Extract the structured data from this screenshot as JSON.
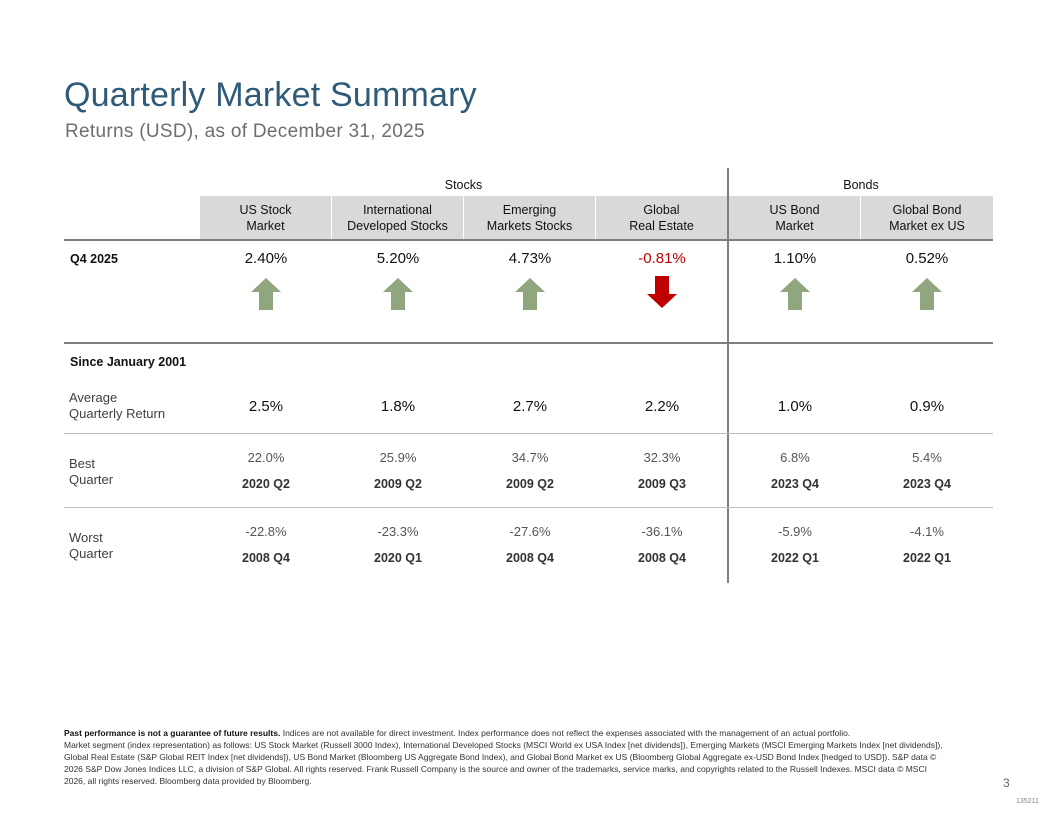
{
  "title": "Quarterly Market Summary",
  "subtitle": "Returns (USD), as of December 31, 2025",
  "groups": {
    "stocks": "Stocks",
    "bonds": "Bonds"
  },
  "columns": [
    {
      "line1": "US Stock",
      "line2": "Market"
    },
    {
      "line1": "International",
      "line2": "Developed Stocks"
    },
    {
      "line1": "Emerging",
      "line2": "Markets Stocks"
    },
    {
      "line1": "Global",
      "line2": "Real Estate"
    },
    {
      "line1": "US Bond",
      "line2": "Market"
    },
    {
      "line1": "Global Bond",
      "line2": "Market ex US"
    }
  ],
  "q4": {
    "label": "Q4 2025",
    "values": [
      "2.40%",
      "5.20%",
      "4.73%",
      "-0.81%",
      "1.10%",
      "0.52%"
    ],
    "directions": [
      "up",
      "up",
      "up",
      "down",
      "up",
      "up"
    ]
  },
  "since": {
    "label": "Since January 2001",
    "average": {
      "label1": "Average",
      "label2": "Quarterly Return",
      "values": [
        "2.5%",
        "1.8%",
        "2.7%",
        "2.2%",
        "1.0%",
        "0.9%"
      ]
    },
    "best": {
      "label1": "Best",
      "label2": "Quarter",
      "values": [
        "22.0%",
        "25.9%",
        "34.7%",
        "32.3%",
        "6.8%",
        "5.4%"
      ],
      "quarters": [
        "2020 Q2",
        "2009 Q2",
        "2009 Q2",
        "2009 Q3",
        "2023 Q4",
        "2023 Q4"
      ]
    },
    "worst": {
      "label1": "Worst",
      "label2": "Quarter",
      "values": [
        "-22.8%",
        "-23.3%",
        "-27.6%",
        "-36.1%",
        "-5.9%",
        "-4.1%"
      ],
      "quarters": [
        "2008 Q4",
        "2020 Q1",
        "2008 Q4",
        "2008 Q4",
        "2022 Q1",
        "2022 Q1"
      ]
    }
  },
  "footnote": {
    "bold": "Past performance is not a guarantee of future results.",
    "line1": " Indices are not available for direct investment. Index performance does not reflect the expenses associated with the management of an actual portfolio.",
    "line2": "Market segment (index representation) as follows: US Stock Market (Russell 3000 Index), International Developed Stocks (MSCI World ex USA Index [net dividends]), Emerging Markets (MSCI Emerging Markets Index [net dividends]), Global Real Estate (S&P Global REIT Index [net dividends]), US Bond Market (Bloomberg US Aggregate Bond Index), and Global Bond Market ex US (Bloomberg Global Aggregate ex-USD Bond Index [hedged to USD]). S&P data © 2026 S&P Dow Jones Indices LLC, a division of S&P Global. All rights reserved. Frank Russell Company is the source and owner of the trademarks, service marks, and copyrights related to the Russell Indexes. MSCI data © MSCI 2026, all rights reserved. Bloomberg data provided by Bloomberg."
  },
  "page_number": "3",
  "doc_code": "135211",
  "colors": {
    "up": "#8fa67f",
    "down": "#c00000",
    "title": "#2f5a78"
  }
}
